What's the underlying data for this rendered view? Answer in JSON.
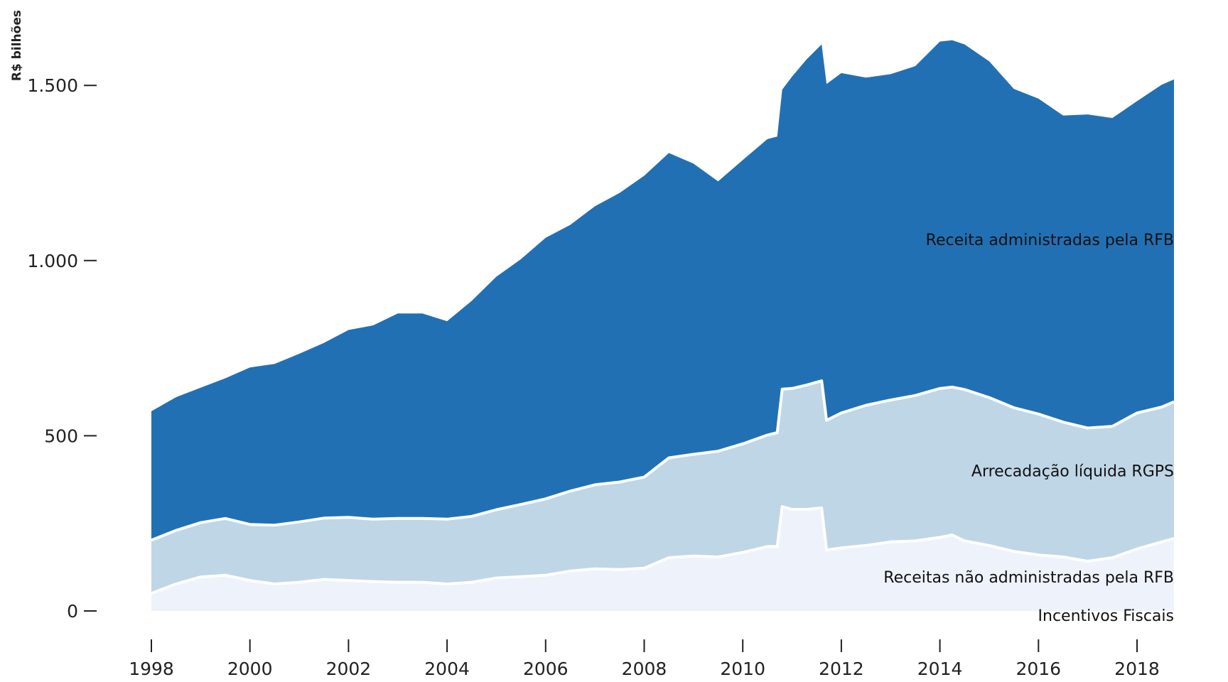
{
  "chart_data": {
    "type": "area",
    "stacked": true,
    "title": "",
    "ylabel": "R$ bilhões",
    "xlabel": "",
    "xlim": [
      1998,
      2018.75
    ],
    "ylim": [
      0,
      1650
    ],
    "y_ticks": [
      0,
      500,
      1000,
      1500
    ],
    "y_tick_labels": [
      "0",
      "500",
      "1.000",
      "1.500"
    ],
    "x_ticks": [
      1998,
      2000,
      2002,
      2004,
      2006,
      2008,
      2010,
      2012,
      2014,
      2016,
      2018
    ],
    "x_tick_labels": [
      "1998",
      "2000",
      "2002",
      "2004",
      "2006",
      "2008",
      "2010",
      "2012",
      "2014",
      "2016",
      "2018"
    ],
    "grid": false,
    "legend": "inline-right",
    "colors": {
      "Incentivos Fiscais": "#eef2fb",
      "Receitas não administradas pela RFB": "#eef2fb",
      "Arrecadação líquida RGPS": "#bfd6e6",
      "Receita administradas pela RFB": "#2270b4",
      "separator": "#ffffff"
    },
    "x": [
      1998.0,
      1998.5,
      1999.0,
      1999.5,
      2000.0,
      2000.5,
      2001.0,
      2001.5,
      2002.0,
      2002.5,
      2003.0,
      2003.5,
      2004.0,
      2004.5,
      2005.0,
      2005.5,
      2006.0,
      2006.5,
      2007.0,
      2007.5,
      2008.0,
      2008.5,
      2009.0,
      2009.5,
      2010.0,
      2010.5,
      2010.7,
      2010.8,
      2011.0,
      2011.3,
      2011.6,
      2011.7,
      2012.0,
      2012.5,
      2013.0,
      2013.5,
      2014.0,
      2014.25,
      2014.5,
      2015.0,
      2015.5,
      2016.0,
      2016.5,
      2017.0,
      2017.5,
      2018.0,
      2018.5,
      2018.75
    ],
    "series": [
      {
        "name": "Incentivos Fiscais",
        "values": [
          2,
          2,
          2,
          2,
          2,
          2,
          2,
          2,
          2,
          2,
          2,
          2,
          2,
          2,
          2,
          2,
          2,
          2,
          2,
          2,
          2,
          2,
          2,
          2,
          2,
          2,
          2,
          2,
          2,
          2,
          2,
          2,
          2,
          2,
          2,
          2,
          2,
          2,
          2,
          2,
          2,
          2,
          2,
          2,
          2,
          2,
          2,
          2
        ]
      },
      {
        "name": "Receitas não administradas pela RFB",
        "values": [
          48,
          75,
          95,
          100,
          85,
          75,
          80,
          88,
          85,
          82,
          80,
          80,
          75,
          80,
          92,
          96,
          100,
          112,
          118,
          116,
          120,
          150,
          155,
          152,
          165,
          182,
          182,
          296,
          288,
          288,
          292,
          172,
          178,
          185,
          195,
          198,
          208,
          215,
          198,
          185,
          168,
          158,
          152,
          140,
          150,
          175,
          195,
          205
        ]
      },
      {
        "name": "Arrecadação líquida RGPS",
        "values": [
          152,
          153,
          155,
          162,
          160,
          168,
          172,
          175,
          180,
          178,
          182,
          182,
          185,
          188,
          195,
          206,
          218,
          228,
          240,
          250,
          260,
          285,
          290,
          302,
          310,
          318,
          325,
          335,
          345,
          355,
          363,
          370,
          385,
          400,
          405,
          415,
          425,
          422,
          432,
          422,
          410,
          402,
          385,
          380,
          375,
          388,
          385,
          390
        ]
      },
      {
        "name": "Receita administradas pela RFB",
        "values": [
          368,
          380,
          385,
          400,
          448,
          460,
          480,
          500,
          535,
          553,
          585,
          585,
          565,
          615,
          665,
          700,
          745,
          760,
          795,
          825,
          860,
          870,
          830,
          770,
          810,
          845,
          845,
          855,
          890,
          930,
          960,
          960,
          970,
          935,
          930,
          940,
          990,
          990,
          985,
          960,
          910,
          900,
          875,
          895,
          880,
          890,
          920,
          920
        ]
      }
    ],
    "inline_labels": [
      {
        "series": "Receita administradas pela RFB",
        "text": "Receita administradas pela RFB",
        "at": [
          2018.75,
          1060
        ]
      },
      {
        "series": "Arrecadação líquida RGPS",
        "text": "Arrecadação líquida RGPS",
        "at": [
          2018.75,
          400
        ]
      },
      {
        "series": "Receitas não administradas pela RFB",
        "text": "Receitas não administradas pela RFB",
        "at": [
          2018.75,
          97
        ]
      },
      {
        "series": "Incentivos Fiscais",
        "text": "Incentivos Fiscais",
        "at": [
          2018.75,
          -12
        ]
      }
    ]
  }
}
